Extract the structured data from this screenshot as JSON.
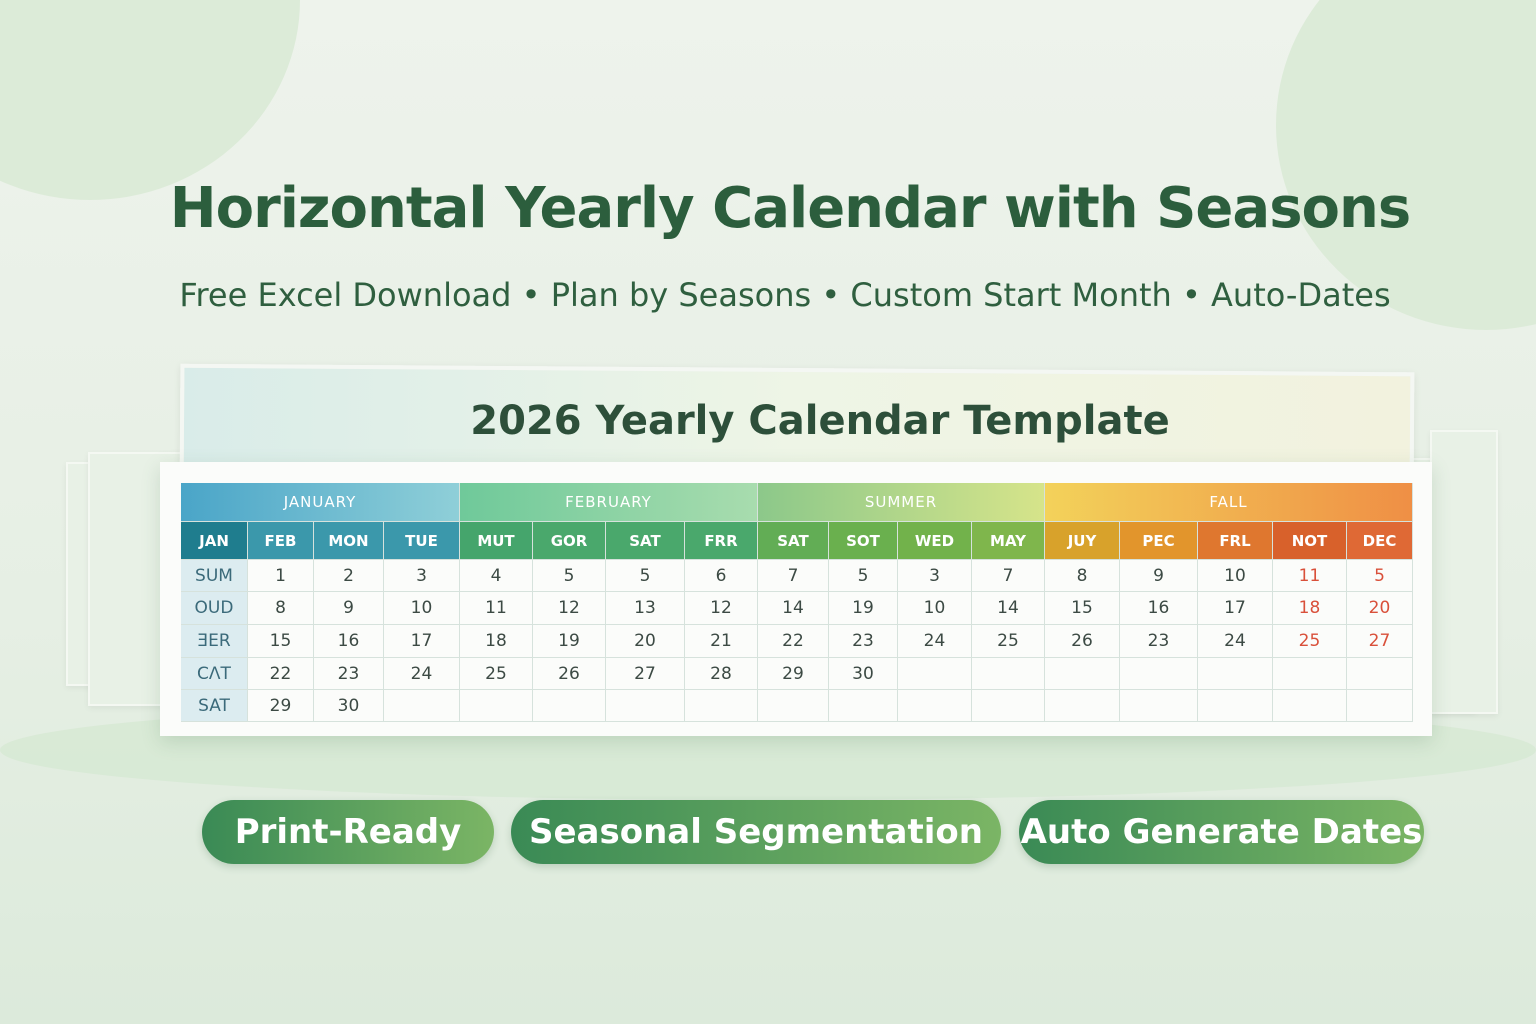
{
  "header": {
    "title": "Horizontal Yearly Calendar with Seasons",
    "subtitle": "Free Excel Download • Plan by Seasons • Custom Start Month • Auto-Dates"
  },
  "calendar": {
    "title": "2026 Yearly Calendar Template",
    "seasons": [
      "JANUARY",
      "FEBRUARY",
      "SUMMER",
      "FALL"
    ],
    "columns": [
      "JAN",
      "FEB",
      "MON",
      "TUE",
      "MUT",
      "GOR",
      "SAT",
      "FRR",
      "SAT",
      "SOT",
      "WED",
      "MAY",
      "JUY",
      "PEC",
      "FRL",
      "NOT",
      "DEC"
    ],
    "rows": [
      [
        "SUM",
        1,
        2,
        3,
        4,
        5,
        5,
        6,
        7,
        5,
        3,
        7,
        8,
        9,
        10,
        11,
        5
      ],
      [
        "OUD",
        8,
        9,
        10,
        11,
        12,
        13,
        12,
        14,
        19,
        10,
        14,
        15,
        16,
        17,
        18,
        20
      ],
      [
        "ƎER",
        15,
        16,
        17,
        18,
        19,
        20,
        21,
        22,
        23,
        24,
        25,
        26,
        23,
        24,
        25,
        27
      ],
      [
        "CΛT",
        22,
        23,
        24,
        25,
        26,
        27,
        28,
        29,
        30,
        null,
        null,
        null,
        null,
        null,
        null,
        null
      ],
      [
        "SAT",
        29,
        30,
        null,
        null,
        null,
        null,
        null,
        null,
        null,
        null,
        null,
        null,
        null,
        null,
        null,
        null
      ]
    ]
  },
  "buttons": [
    "Print-Ready",
    "Seasonal Segmentation",
    "Auto Generate Dates"
  ]
}
